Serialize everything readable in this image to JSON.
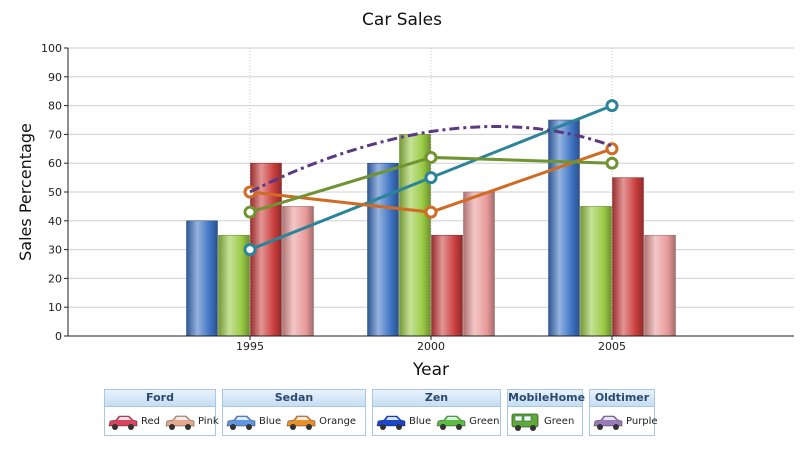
{
  "chart_data": {
    "type": "bar",
    "title": "Car Sales",
    "xlabel": "Year",
    "ylabel": "Sales Percentage",
    "categories": [
      "1995",
      "2000",
      "2005"
    ],
    "ylim": [
      0,
      100
    ],
    "yticks": [
      "0",
      "10",
      "20",
      "30",
      "40",
      "50",
      "60",
      "70",
      "80",
      "90",
      "100"
    ],
    "grid": true,
    "bar_series": [
      {
        "values": [
          40,
          60,
          75
        ],
        "color": "#3f74c4"
      },
      {
        "values": [
          35,
          70,
          45
        ],
        "color": "#9acb45"
      },
      {
        "values": [
          60,
          35,
          55
        ],
        "color": "#cc3e3e"
      },
      {
        "values": [
          45,
          50,
          35
        ],
        "color": "#e99a9a"
      }
    ],
    "line_series": [
      {
        "values": [
          30,
          55,
          80
        ],
        "color": "#2b8499",
        "style": "solid",
        "markers": true
      },
      {
        "values": [
          50,
          43,
          65
        ],
        "color": "#d06b24",
        "style": "solid",
        "markers": true
      },
      {
        "values": [
          43,
          62,
          60
        ],
        "color": "#6f9431",
        "style": "solid",
        "markers": true
      },
      {
        "values": [
          50,
          71,
          66
        ],
        "color": "#5c3a83",
        "style": "dashdot",
        "markers": false,
        "smooth": true,
        "peak": 72
      }
    ]
  },
  "legend": {
    "groups": [
      {
        "title": "Ford",
        "items": [
          {
            "label": "Red",
            "color": "#d9455f"
          },
          {
            "label": "Pink",
            "color": "#e6a98e"
          }
        ]
      },
      {
        "title": "Sedan",
        "items": [
          {
            "label": "Blue",
            "color": "#5f97e0"
          },
          {
            "label": "Orange",
            "color": "#e8902c"
          }
        ]
      },
      {
        "title": "Zen",
        "items": [
          {
            "label": "Blue",
            "color": "#1a47c9"
          },
          {
            "label": "Green",
            "color": "#5bbd43"
          }
        ]
      },
      {
        "title": "MobileHome",
        "items": [
          {
            "label": "Green",
            "color": "#5fa83b"
          }
        ]
      },
      {
        "title": "Oldtimer",
        "items": [
          {
            "label": "Purple",
            "color": "#9a7ab8"
          }
        ]
      }
    ]
  }
}
